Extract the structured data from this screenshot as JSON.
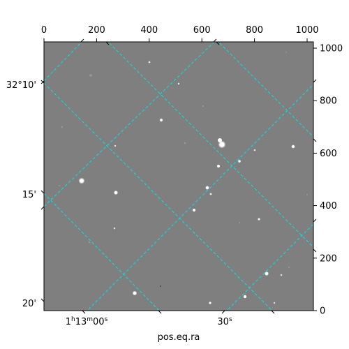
{
  "chart_data": {
    "type": "image",
    "x_pixel_axis": {
      "ticks": [
        "0",
        "200",
        "400",
        "600",
        "800",
        "1000"
      ],
      "range": [
        0,
        1024
      ]
    },
    "y_pixel_axis": {
      "ticks": [
        "0",
        "200",
        "400",
        "600",
        "800",
        "1000"
      ],
      "range": [
        0,
        1024
      ]
    },
    "ra_axis": {
      "label": "pos.eq.ra",
      "ticks": [
        {
          "label_main": "1",
          "label_h": "h",
          "label_mid": "13",
          "label_m": "m",
          "label_sec": "00",
          "label_s": "s"
        },
        {
          "label_main": "",
          "label_h": "",
          "label_mid": "",
          "label_m": "",
          "label_sec": "30",
          "label_s": "s"
        }
      ]
    },
    "dec_axis": {
      "ticks": [
        {
          "label": "32°10'"
        },
        {
          "label": "15'"
        },
        {
          "label": "20'"
        }
      ]
    },
    "grid": true,
    "grid_color": "#00e5e5",
    "background_color": "#7f7f7f"
  }
}
